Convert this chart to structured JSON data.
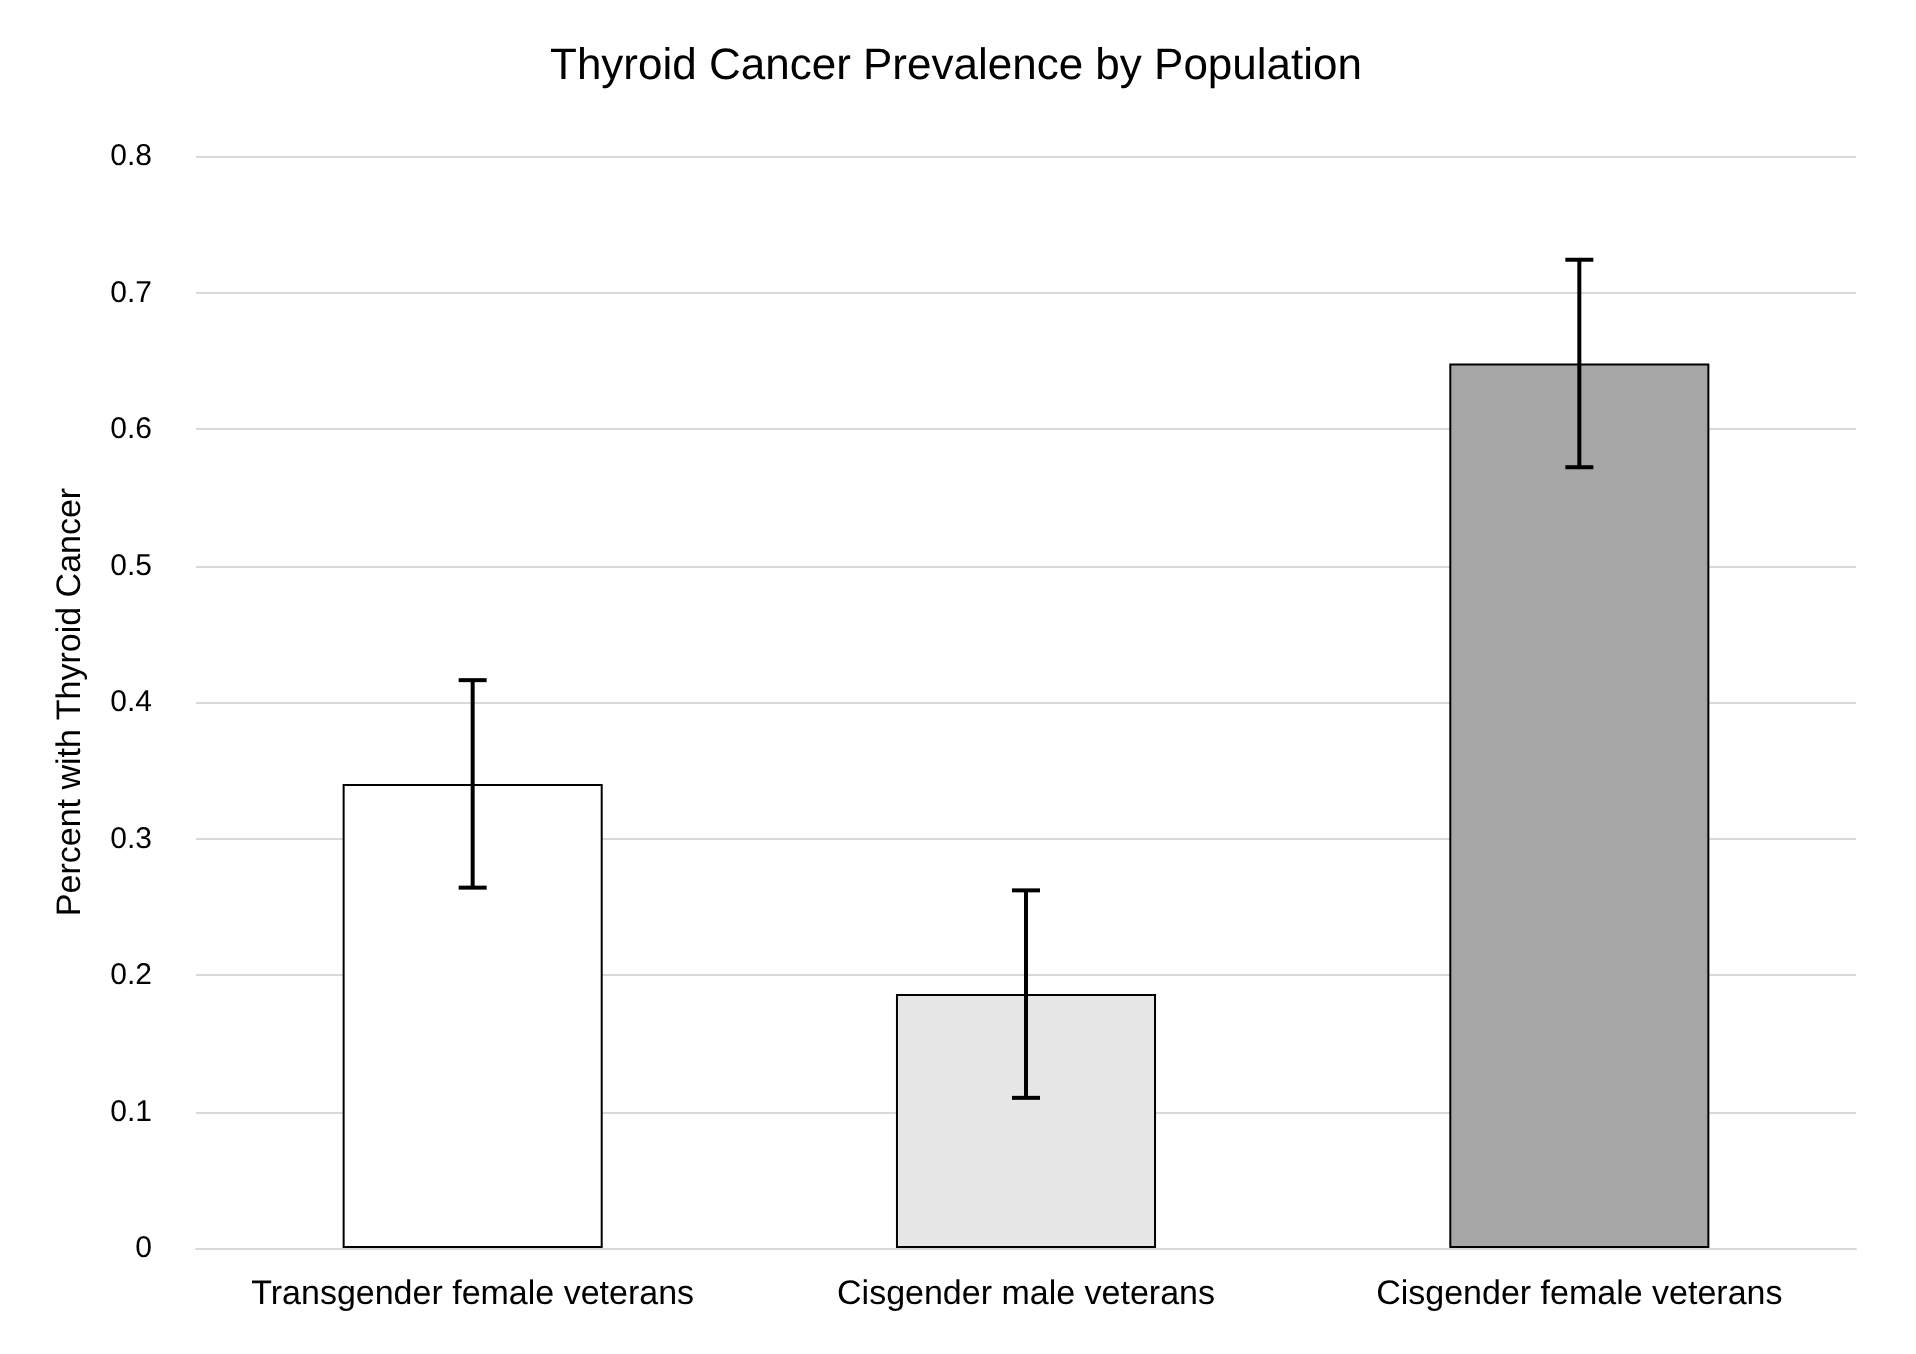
{
  "chart_data": {
    "type": "bar",
    "title": "Thyroid Cancer Prevalence by Population",
    "ylabel": "Percent with Thyroid Cancer",
    "categories": [
      "Transgender female veterans",
      "Cisgender male veterans",
      "Cisgender female veterans"
    ],
    "values": [
      0.34,
      0.186,
      0.648
    ],
    "errors": [
      0.076,
      0.076,
      0.076
    ],
    "colors": [
      "#ffffff",
      "#e6e6e6",
      "#a6a6a6"
    ],
    "ylim": [
      0,
      0.8
    ],
    "yticks": [
      0,
      0.1,
      0.2,
      0.3,
      0.4,
      0.5,
      0.6,
      0.7,
      0.8
    ],
    "grid": "y"
  }
}
